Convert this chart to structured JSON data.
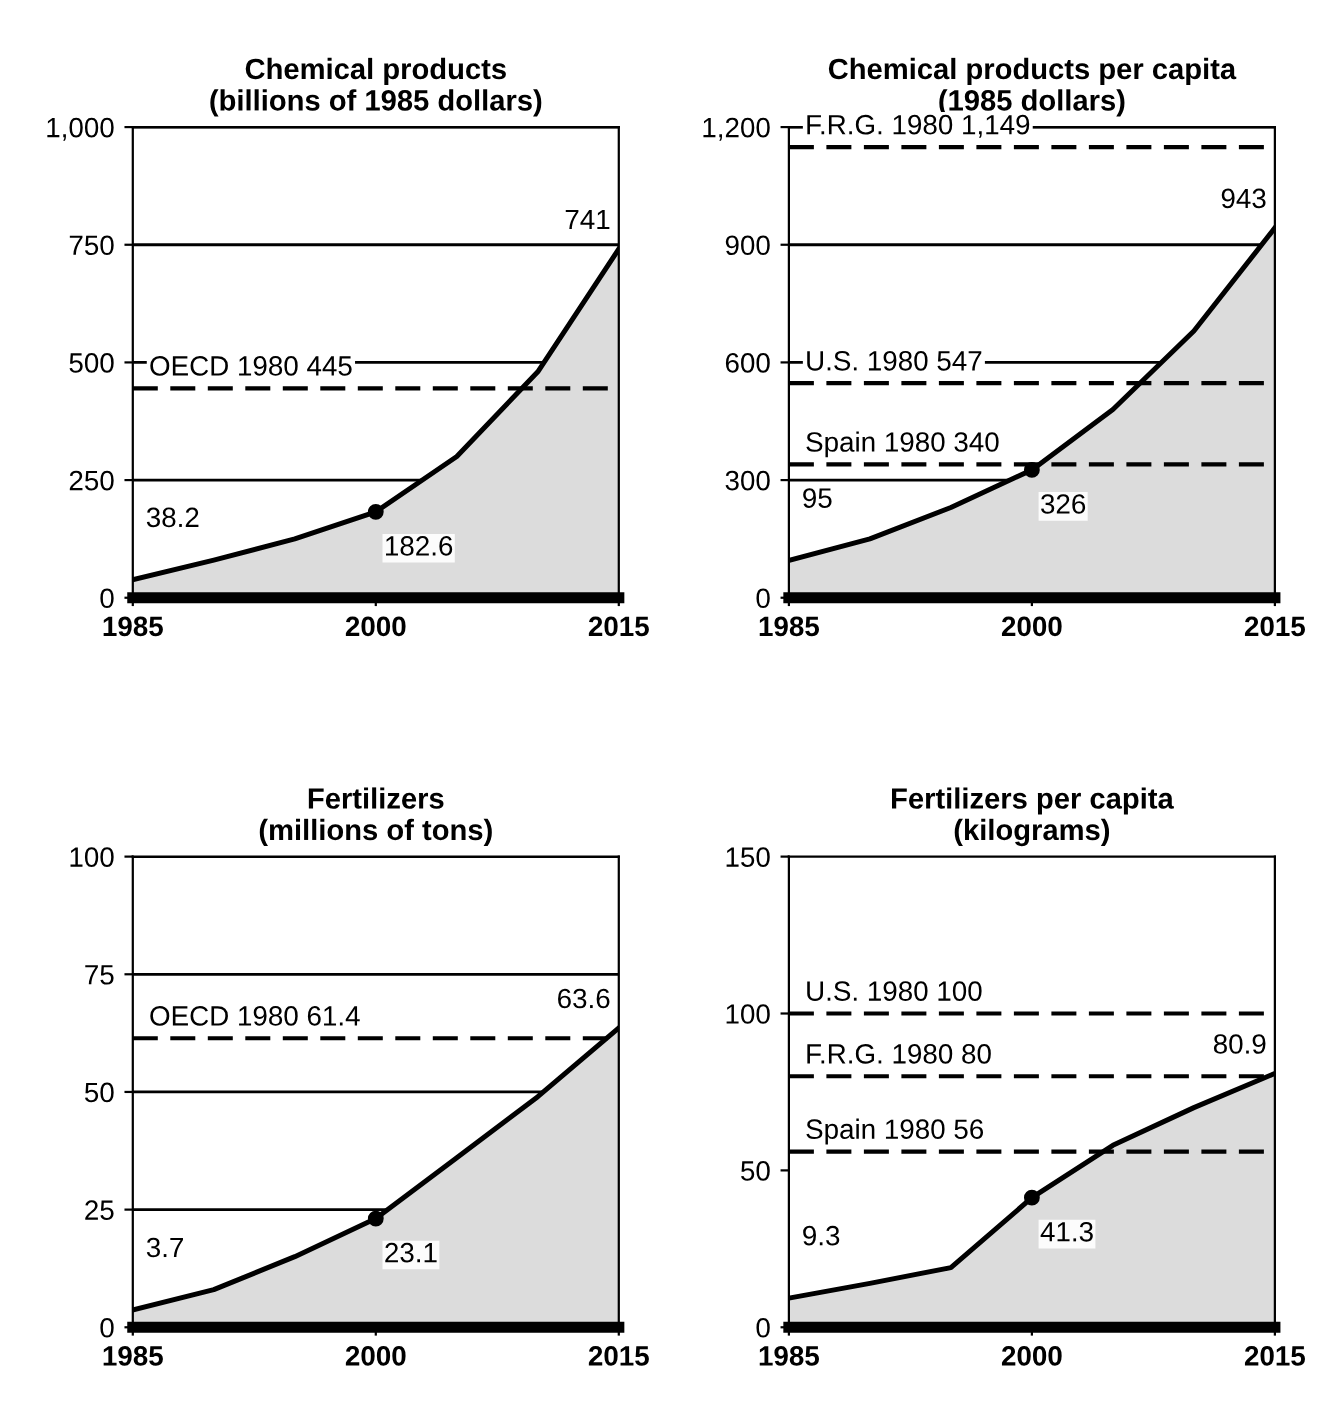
{
  "chart_data": [
    {
      "type": "area",
      "title": "Chemical products\n(billions of 1985 dollars)",
      "x": [
        1985,
        1990,
        1995,
        2000,
        2005,
        2010,
        2015
      ],
      "xlim": [
        1985,
        2015
      ],
      "xticks": [
        1985,
        2000,
        2015
      ],
      "ylim": [
        0,
        1000
      ],
      "yticks": [
        0,
        250,
        500,
        750,
        {
          "value": 1000,
          "label": "1,000"
        }
      ],
      "grid": "y",
      "series": [
        {
          "color": "#000000",
          "values": [
            38.2,
            80,
            125,
            182.6,
            300,
            480,
            741
          ],
          "value_labels": [
            "38.2",
            null,
            null,
            "182.6",
            null,
            null,
            "741"
          ]
        },
        {
          "type": "scatter",
          "color": "#000000",
          "marker": "circle",
          "values": [
            null,
            null,
            null,
            182.6,
            null,
            null,
            null
          ]
        }
      ],
      "ref_lines": [
        {
          "axis": "y",
          "value": 445,
          "label": "OECD 1980 445",
          "line_style": "dashed",
          "color": "#000000"
        }
      ]
    },
    {
      "type": "area",
      "title": "Chemical products per capita\n(1985 dollars)",
      "x": [
        1985,
        1990,
        1995,
        2000,
        2005,
        2010,
        2015
      ],
      "xlim": [
        1985,
        2015
      ],
      "xticks": [
        1985,
        2000,
        2015
      ],
      "ylim": [
        0,
        1200
      ],
      "yticks": [
        0,
        300,
        600,
        900,
        {
          "value": 1200,
          "label": "1,200"
        }
      ],
      "grid": "y",
      "series": [
        {
          "color": "#000000",
          "values": [
            95,
            150,
            230,
            326,
            480,
            680,
            943
          ],
          "value_labels": [
            "95",
            null,
            null,
            "326",
            null,
            null,
            "943"
          ]
        },
        {
          "type": "scatter",
          "color": "#000000",
          "marker": "circle",
          "values": [
            null,
            null,
            null,
            326,
            null,
            null,
            null
          ]
        }
      ],
      "ref_lines": [
        {
          "axis": "y",
          "value": 1149,
          "label": "F.R.G. 1980 1,149",
          "line_style": "dashed",
          "color": "#000000"
        },
        {
          "axis": "y",
          "value": 547,
          "label": "U.S. 1980 547",
          "line_style": "dashed",
          "color": "#000000"
        },
        {
          "axis": "y",
          "value": 340,
          "label": "Spain 1980 340",
          "line_style": "dashed",
          "color": "#000000"
        }
      ]
    },
    {
      "type": "area",
      "title": "Fertilizers\n(millions of tons)",
      "x": [
        1985,
        1990,
        1995,
        2000,
        2005,
        2010,
        2015
      ],
      "xlim": [
        1985,
        2015
      ],
      "xticks": [
        1985,
        2000,
        2015
      ],
      "ylim": [
        0,
        100
      ],
      "yticks": [
        0,
        25,
        50,
        75,
        100
      ],
      "grid": "y",
      "series": [
        {
          "color": "#000000",
          "values": [
            3.7,
            8,
            15,
            23.1,
            36,
            49,
            63.6
          ],
          "value_labels": [
            "3.7",
            null,
            null,
            "23.1",
            null,
            null,
            "63.6"
          ]
        },
        {
          "type": "scatter",
          "color": "#000000",
          "marker": "circle",
          "values": [
            null,
            null,
            null,
            23.1,
            null,
            null,
            null
          ]
        }
      ],
      "ref_lines": [
        {
          "axis": "y",
          "value": 61.4,
          "label": "OECD 1980 61.4",
          "line_style": "dashed",
          "color": "#000000"
        }
      ]
    },
    {
      "type": "area",
      "title": "Fertilizers per capita\n(kilograms)",
      "x": [
        1985,
        1990,
        1995,
        2000,
        2005,
        2010,
        2015
      ],
      "xlim": [
        1985,
        2015
      ],
      "xticks": [
        1985,
        2000,
        2015
      ],
      "ylim": [
        0,
        150
      ],
      "yticks": [
        0,
        50,
        100,
        150
      ],
      "grid": false,
      "series": [
        {
          "color": "#000000",
          "values": [
            9.3,
            14,
            19,
            41.3,
            58,
            70,
            80.9
          ],
          "value_labels": [
            "9.3",
            null,
            null,
            "41.3",
            null,
            null,
            "80.9"
          ]
        },
        {
          "type": "scatter",
          "color": "#000000",
          "marker": "circle",
          "values": [
            null,
            null,
            null,
            41.3,
            null,
            null,
            null
          ]
        }
      ],
      "ref_lines": [
        {
          "axis": "y",
          "value": 100,
          "label": "U.S. 1980 100",
          "line_style": "dashed",
          "color": "#000000"
        },
        {
          "axis": "y",
          "value": 80,
          "label": "F.R.G. 1980 80",
          "line_style": "dashed",
          "color": "#000000"
        },
        {
          "axis": "y",
          "value": 56,
          "label": "Spain 1980 56",
          "line_style": "dashed",
          "color": "#000000"
        }
      ]
    }
  ]
}
